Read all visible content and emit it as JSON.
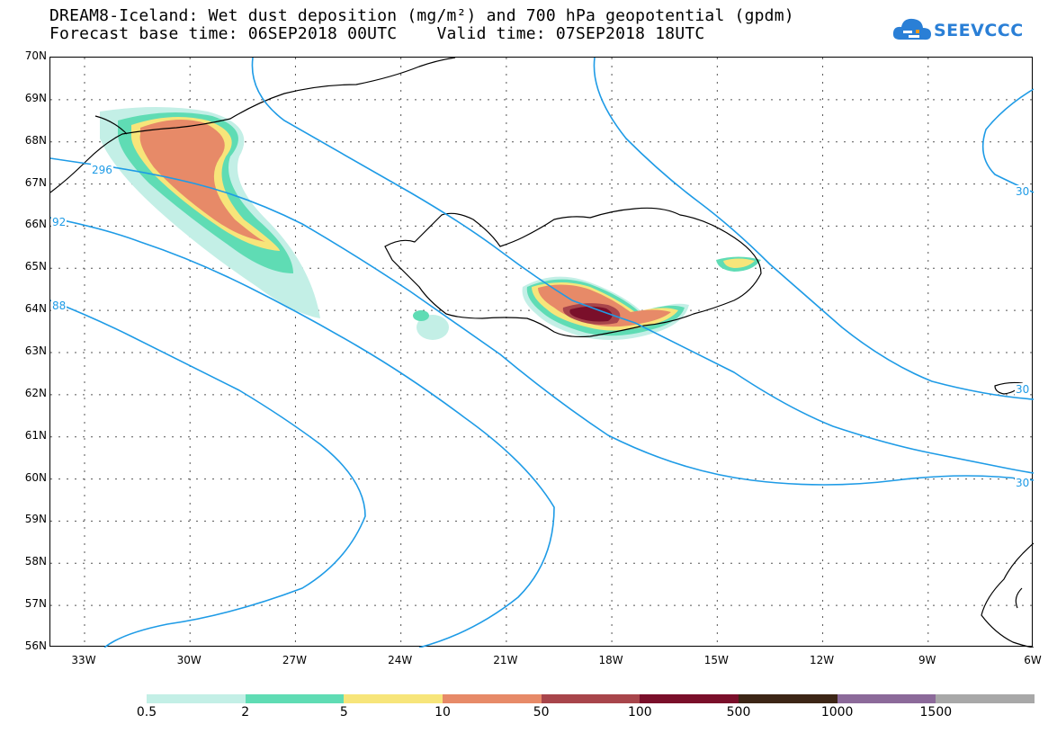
{
  "title": {
    "line1": "DREAM8-Iceland: Wet dust deposition (mg/m²) and 700 hPa geopotential (gpdm)",
    "line2": "Forecast base time: 06SEP2018 00UTC    Valid time: 07SEP2018 18UTC"
  },
  "logo": {
    "text": "SEEVCCC",
    "icon": "cloud-logo-icon"
  },
  "map": {
    "lat_labels": [
      "70N",
      "69N",
      "68N",
      "67N",
      "66N",
      "65N",
      "64N",
      "63N",
      "62N",
      "61N",
      "60N",
      "59N",
      "58N",
      "57N",
      "56N"
    ],
    "lon_labels": [
      "33W",
      "30W",
      "27W",
      "24W",
      "21W",
      "18W",
      "15W",
      "12W",
      "9W",
      "6W"
    ],
    "contour_labels": [
      "296",
      "92",
      "88",
      "30",
      "30",
      "30"
    ],
    "contour_color": "#1e9be6"
  },
  "legend": {
    "colors": [
      "#c3efe6",
      "#5fdcb4",
      "#f7e57a",
      "#e78a68",
      "#a8454b",
      "#7a0f2a",
      "#3d2616",
      "#8c6a9a",
      "#a8a8a8"
    ],
    "labels": [
      "0.5",
      "2",
      "5",
      "10",
      "50",
      "100",
      "500",
      "1000",
      "1500"
    ]
  }
}
